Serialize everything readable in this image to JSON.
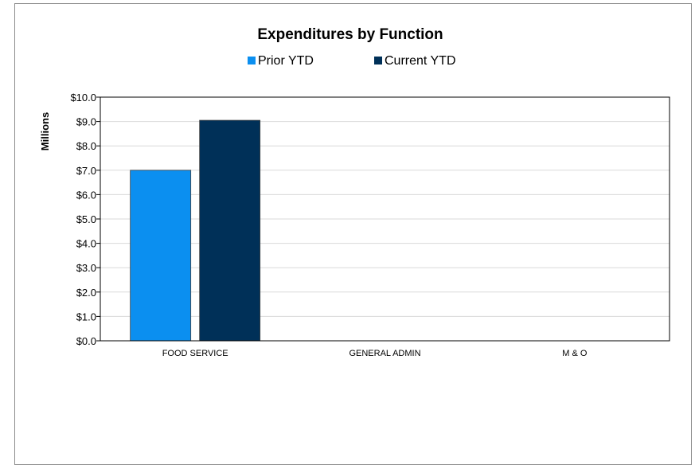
{
  "chart_data": {
    "type": "bar",
    "title": "Expenditures by Function",
    "ylabel": "Millions",
    "xlabel": "",
    "categories": [
      "FOOD SERVICE",
      "GENERAL ADMIN",
      "M & O"
    ],
    "series": [
      {
        "name": "Prior YTD",
        "values": [
          7.0,
          0,
          0
        ],
        "color": "#0b8ff0"
      },
      {
        "name": "Current YTD",
        "values": [
          9.05,
          0,
          0
        ],
        "color": "#003058"
      }
    ],
    "ylim": [
      0,
      10
    ],
    "yticks": [
      0,
      1,
      2,
      3,
      4,
      5,
      6,
      7,
      8,
      9,
      10
    ],
    "ytick_labels": [
      "$0.0",
      "$1.0",
      "$2.0",
      "$3.0",
      "$4.0",
      "$5.0",
      "$6.0",
      "$7.0",
      "$8.0",
      "$9.0",
      "$10.0"
    ],
    "grid": true,
    "legend_position": "top-center"
  }
}
